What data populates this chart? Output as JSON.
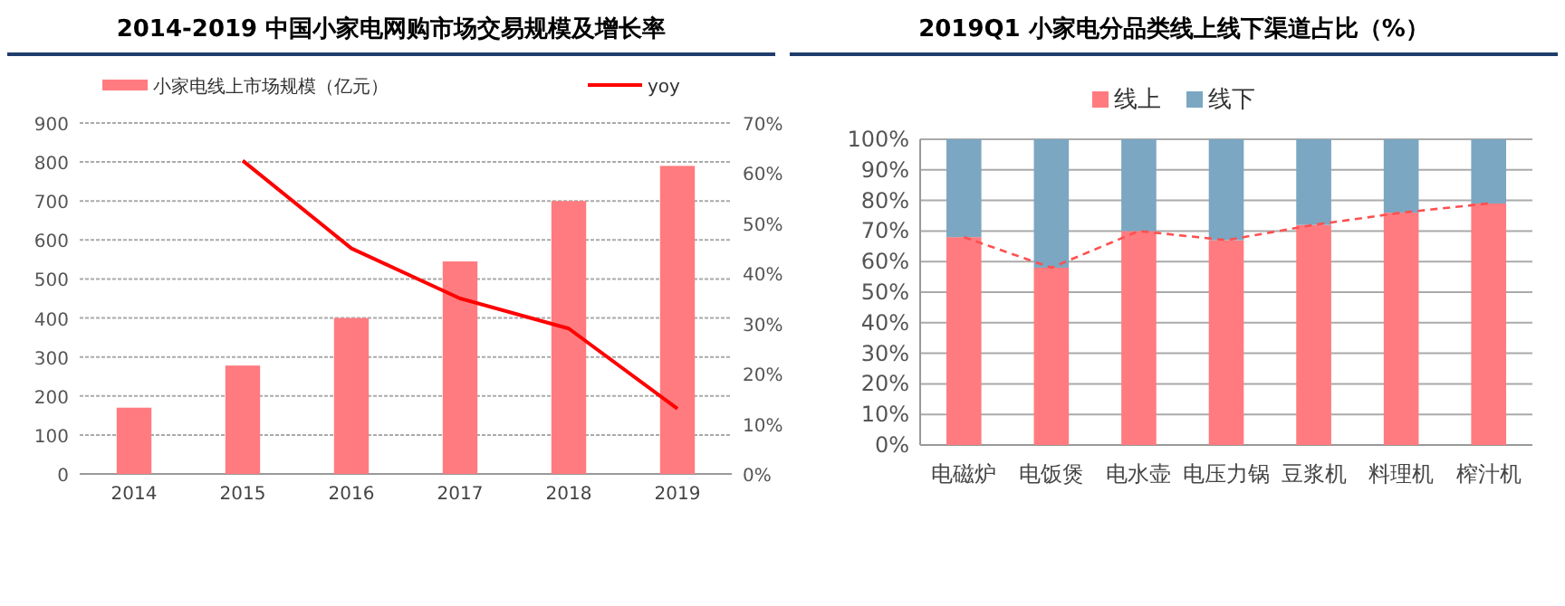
{
  "chart_data": [
    {
      "type": "bar",
      "title": "2014-2019 中国小家电网购市场交易规模及增长率",
      "categories": [
        "2014",
        "2015",
        "2016",
        "2017",
        "2018",
        "2019"
      ],
      "series": [
        {
          "name": "小家电线上市场规模（亿元）",
          "color": "#ff7b7f",
          "values": [
            170,
            278,
            400,
            545,
            700,
            790
          ]
        },
        {
          "name": "yoy",
          "type": "line",
          "axis": "y2",
          "color": "#ff0000",
          "values": [
            null,
            62.5,
            45,
            35,
            29,
            13
          ]
        }
      ],
      "ylim": [
        0,
        900
      ],
      "yticks": [
        0,
        100,
        200,
        300,
        400,
        500,
        600,
        700,
        800,
        900
      ],
      "y2lim": [
        0,
        70
      ],
      "y2ticks": [
        {
          "value": 0,
          "label": "0%"
        },
        {
          "value": 10,
          "label": "10%"
        },
        {
          "value": 20,
          "label": "20%"
        },
        {
          "value": 30,
          "label": "30%"
        },
        {
          "value": 40,
          "label": "40%"
        },
        {
          "value": 50,
          "label": "50%"
        },
        {
          "value": 60,
          "label": "60%"
        },
        {
          "value": 70,
          "label": "70%"
        }
      ],
      "grid": "y",
      "legend": "top"
    },
    {
      "type": "bar",
      "title": "2019Q1 小家电分品类线上线下渠道占比（%）",
      "categories": [
        "电磁炉",
        "电饭煲",
        "电水壶",
        "电压力锅",
        "豆浆机",
        "料理机",
        "榨汁机"
      ],
      "stacked": true,
      "series": [
        {
          "name": "线上",
          "color": "#ff7b7f",
          "values": [
            68,
            58,
            70,
            67,
            72,
            76,
            79
          ]
        },
        {
          "name": "线下",
          "color": "#7ba7c2",
          "values": [
            32,
            42,
            30,
            33,
            28,
            24,
            21
          ]
        },
        {
          "type": "line",
          "line_style": "dashed",
          "color": "#ff5050",
          "values": [
            68,
            58,
            70,
            67,
            72,
            76,
            79
          ]
        }
      ],
      "ylim": [
        0,
        100
      ],
      "yticks": [
        {
          "value": 0,
          "label": "0%"
        },
        {
          "value": 10,
          "label": "10%"
        },
        {
          "value": 20,
          "label": "20%"
        },
        {
          "value": 30,
          "label": "30%"
        },
        {
          "value": 40,
          "label": "40%"
        },
        {
          "value": 50,
          "label": "50%"
        },
        {
          "value": 60,
          "label": "60%"
        },
        {
          "value": 70,
          "label": "70%"
        },
        {
          "value": 80,
          "label": "80%"
        },
        {
          "value": 90,
          "label": "90%"
        },
        {
          "value": 100,
          "label": "100%"
        }
      ],
      "grid": "y",
      "legend": "top"
    }
  ]
}
